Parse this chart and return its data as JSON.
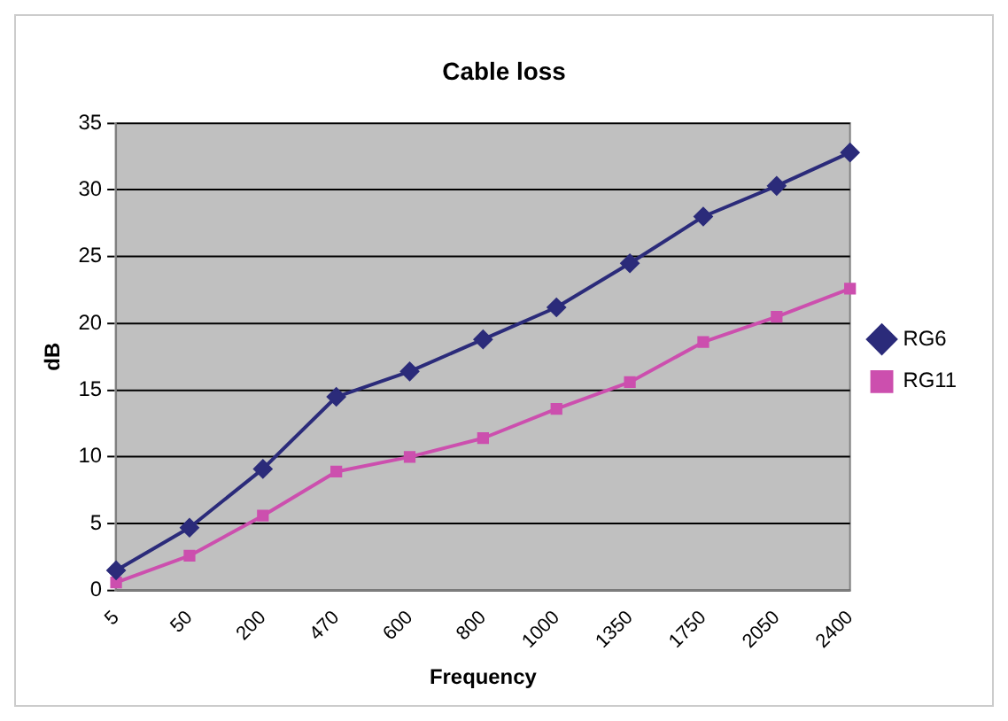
{
  "chart_data": {
    "type": "line",
    "title": "Cable loss",
    "xlabel": "Frequency",
    "ylabel": "dB",
    "categories": [
      "5",
      "50",
      "200",
      "470",
      "600",
      "800",
      "1000",
      "1350",
      "1750",
      "2050",
      "2400"
    ],
    "series": [
      {
        "name": "RG6",
        "color": "#2b2b7a",
        "marker": "diamond",
        "values": [
          1.5,
          4.7,
          9.1,
          14.5,
          16.4,
          18.8,
          21.2,
          24.5,
          28,
          30.3,
          32.8
        ]
      },
      {
        "name": "RG11",
        "color": "#cc4fae",
        "marker": "square",
        "values": [
          0.6,
          2.6,
          5.6,
          8.9,
          10,
          11.4,
          13.6,
          15.6,
          18.6,
          20.5,
          22.6
        ]
      }
    ],
    "ylim": [
      0,
      35
    ],
    "yticks": [
      0,
      5,
      10,
      15,
      20,
      25,
      30,
      35
    ],
    "grid": "y",
    "legend": "right"
  }
}
